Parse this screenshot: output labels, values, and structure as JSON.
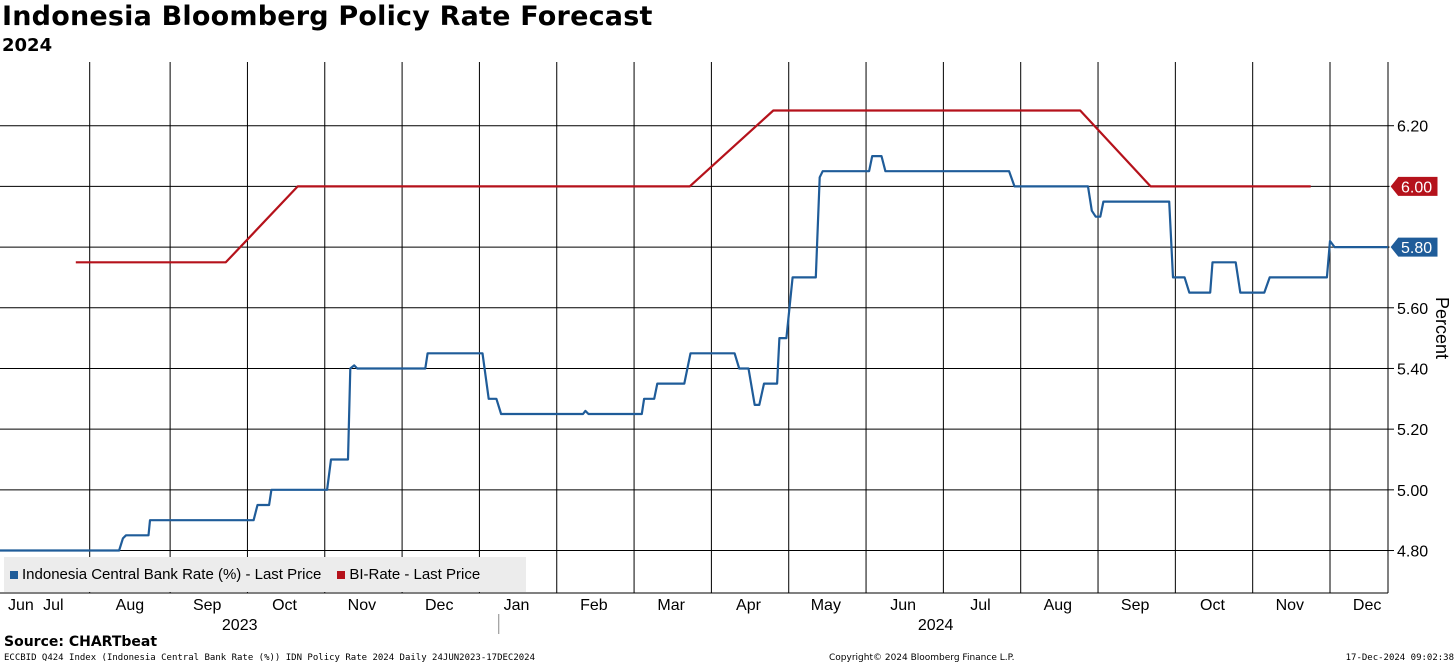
{
  "title": "Indonesia Bloomberg Policy Rate Forecast",
  "subtitle": "2024",
  "source": "Source: CHARTbeat",
  "footer": {
    "left": "ECCBID Q424 Index (Indonesia Central Bank Rate (%)) IDN Policy Rate 2024  Daily 24JUN2023-17DEC2024",
    "center": "Copyright© 2024 Bloomberg Finance L.P.",
    "right": "17-Dec-2024 09:02:38"
  },
  "colors": {
    "series1": "#1f5c99",
    "series2": "#b5121b",
    "grid": "#000000"
  },
  "chart_data": {
    "type": "line",
    "xlabel": "",
    "ylabel": "Percent",
    "ylim": [
      4.66,
      6.41
    ],
    "yticks": [
      "4.80",
      "5.00",
      "5.20",
      "5.40",
      "5.60",
      "5.80",
      "6.00",
      "6.20"
    ],
    "xlim": [
      0,
      17.95
    ],
    "x_unit": "months since 1 Jun 2023",
    "month_ticks": [
      {
        "label": "Jun",
        "pos": 0.27
      },
      {
        "label": "Jul",
        "pos": 0.69
      },
      {
        "label": "Aug",
        "pos": 1.68
      },
      {
        "label": "Sep",
        "pos": 2.68
      },
      {
        "label": "Oct",
        "pos": 3.68
      },
      {
        "label": "Nov",
        "pos": 4.68
      },
      {
        "label": "Dec",
        "pos": 5.68
      },
      {
        "label": "Jan",
        "pos": 6.68
      },
      {
        "label": "Feb",
        "pos": 7.68
      },
      {
        "label": "Mar",
        "pos": 8.68
      },
      {
        "label": "Apr",
        "pos": 9.68
      },
      {
        "label": "May",
        "pos": 10.68
      },
      {
        "label": "Jun",
        "pos": 11.68
      },
      {
        "label": "Jul",
        "pos": 12.68
      },
      {
        "label": "Aug",
        "pos": 13.68
      },
      {
        "label": "Sep",
        "pos": 14.68
      },
      {
        "label": "Oct",
        "pos": 15.68
      },
      {
        "label": "Nov",
        "pos": 16.68
      },
      {
        "label": "Dec",
        "pos": 17.68
      }
    ],
    "gridlines_x": [
      1.16,
      2.2,
      3.2,
      4.2,
      5.2,
      6.2,
      7.2,
      8.2,
      9.2,
      10.2,
      11.2,
      12.2,
      13.2,
      14.2,
      15.2,
      16.2,
      17.2
    ],
    "years": [
      {
        "label": "2023",
        "pos": 3.1
      },
      {
        "label": "2024",
        "pos": 12.1
      }
    ],
    "series": [
      {
        "name": "Indonesia Central Bank Rate (%) - Last Price",
        "end_label": "5.80",
        "points": [
          [
            0,
            4.8
          ],
          [
            1.54,
            4.8
          ],
          [
            1.59,
            4.84
          ],
          [
            1.63,
            4.85
          ],
          [
            1.92,
            4.85
          ],
          [
            1.94,
            4.9
          ],
          [
            3.28,
            4.9
          ],
          [
            3.33,
            4.95
          ],
          [
            3.48,
            4.95
          ],
          [
            3.51,
            5.0
          ],
          [
            4.23,
            5.0
          ],
          [
            4.28,
            5.1
          ],
          [
            4.5,
            5.1
          ],
          [
            4.53,
            5.4
          ],
          [
            4.58,
            5.41
          ],
          [
            4.62,
            5.4
          ],
          [
            5.5,
            5.4
          ],
          [
            5.53,
            5.45
          ],
          [
            6.24,
            5.45
          ],
          [
            6.32,
            5.3
          ],
          [
            6.42,
            5.3
          ],
          [
            6.48,
            5.25
          ],
          [
            7.54,
            5.25
          ],
          [
            7.57,
            5.26
          ],
          [
            7.61,
            5.25
          ],
          [
            8.3,
            5.25
          ],
          [
            8.33,
            5.3
          ],
          [
            8.46,
            5.3
          ],
          [
            8.5,
            5.35
          ],
          [
            8.85,
            5.35
          ],
          [
            8.93,
            5.45
          ],
          [
            9.5,
            5.45
          ],
          [
            9.56,
            5.4
          ],
          [
            9.68,
            5.4
          ],
          [
            9.76,
            5.28
          ],
          [
            9.82,
            5.28
          ],
          [
            9.88,
            5.35
          ],
          [
            10.05,
            5.35
          ],
          [
            10.08,
            5.5
          ],
          [
            10.17,
            5.5
          ],
          [
            10.25,
            5.7
          ],
          [
            10.55,
            5.7
          ],
          [
            10.6,
            6.03
          ],
          [
            10.64,
            6.05
          ],
          [
            11.24,
            6.05
          ],
          [
            11.28,
            6.1
          ],
          [
            11.4,
            6.1
          ],
          [
            11.45,
            6.05
          ],
          [
            13.05,
            6.05
          ],
          [
            13.12,
            6.0
          ],
          [
            14.07,
            6.0
          ],
          [
            14.12,
            5.92
          ],
          [
            14.17,
            5.9
          ],
          [
            14.23,
            5.9
          ],
          [
            14.27,
            5.95
          ],
          [
            15.12,
            5.95
          ],
          [
            15.17,
            5.7
          ],
          [
            15.32,
            5.7
          ],
          [
            15.38,
            5.65
          ],
          [
            15.65,
            5.65
          ],
          [
            15.68,
            5.75
          ],
          [
            15.98,
            5.75
          ],
          [
            16.04,
            5.65
          ],
          [
            16.35,
            5.65
          ],
          [
            16.42,
            5.7
          ],
          [
            17.16,
            5.7
          ],
          [
            17.2,
            5.82
          ],
          [
            17.26,
            5.8
          ],
          [
            17.95,
            5.8
          ]
        ]
      },
      {
        "name": "BI-Rate - Last Price",
        "end_label": "6.00",
        "points": [
          [
            0.98,
            5.75
          ],
          [
            2.92,
            5.75
          ],
          [
            3.85,
            6.0
          ],
          [
            8.92,
            6.0
          ],
          [
            10.0,
            6.25
          ],
          [
            13.97,
            6.25
          ],
          [
            14.88,
            6.0
          ],
          [
            16.95,
            6.0
          ]
        ]
      }
    ]
  }
}
